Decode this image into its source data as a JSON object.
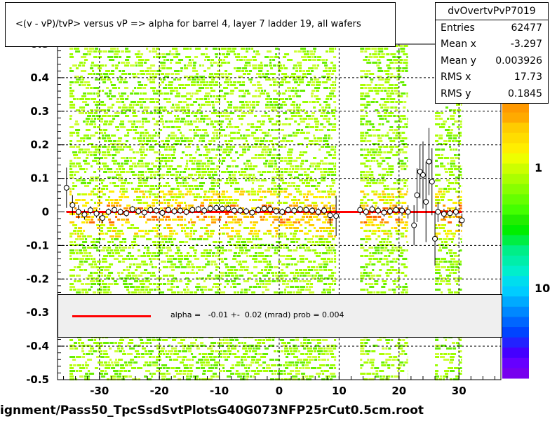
{
  "title": "<(v - vP)/tvP> versus   vP => alpha for barrel 4, layer 7 ladder 19, all wafers",
  "stats": {
    "name": "dvOvertvPvP7019",
    "rows": [
      {
        "label": "Entries",
        "value": "62477"
      },
      {
        "label": "Mean x",
        "value": "-3.297"
      },
      {
        "label": "Mean y",
        "value": "0.003926"
      },
      {
        "label": "RMS x",
        "value": "17.73"
      },
      {
        "label": "RMS y",
        "value": "0.1845"
      }
    ]
  },
  "legend": {
    "text": "alpha =   -0.01 +-  0.02 (mrad) prob = 0.004",
    "color": "#ff0000"
  },
  "footer": "ignment/Pass50_TpcSsdSvtPlotsG40G073NFP25rCut0.5cm.root",
  "colorbar_labels": [
    "1",
    "10"
  ],
  "chart_data": {
    "type": "scatter",
    "xlim": [
      -37,
      37
    ],
    "ylim": [
      -0.5,
      0.5
    ],
    "x_ticks": [
      -30,
      -20,
      -10,
      0,
      10,
      20,
      30
    ],
    "y_ticks": [
      -0.5,
      -0.4,
      -0.3,
      -0.2,
      -0.1,
      0,
      0.1,
      0.2,
      0.3,
      0.4,
      0.5
    ],
    "y_tick_labels": [
      "-0.5",
      "-0.4",
      "-0.3",
      "-0.2",
      "-0.1",
      "0",
      "0.1",
      "0.2",
      "0.3",
      "0.4",
      "0.5"
    ],
    "grid": true,
    "filled_x_ranges": [
      [
        -35,
        9.5
      ],
      [
        13.5,
        21.5
      ],
      [
        26,
        30.5
      ]
    ],
    "fit": {
      "x": [
        -35.5,
        30.5
      ],
      "y": [
        0.0,
        0.0
      ],
      "color": "#ff0000"
    },
    "profile_points": [
      {
        "x": -35.5,
        "y": 0.072,
        "err": 0.06
      },
      {
        "x": -34.5,
        "y": 0.02,
        "err": 0.03
      },
      {
        "x": -33.5,
        "y": 0.0,
        "err": 0.02
      },
      {
        "x": -32.5,
        "y": -0.008,
        "err": 0.015
      },
      {
        "x": -31.5,
        "y": 0.005,
        "err": 0.012
      },
      {
        "x": -30.5,
        "y": -0.005,
        "err": 0.012
      },
      {
        "x": -29.5,
        "y": -0.018,
        "err": 0.015
      },
      {
        "x": -28.5,
        "y": 0.0,
        "err": 0.01
      },
      {
        "x": -27.5,
        "y": 0.006,
        "err": 0.01
      },
      {
        "x": -26.5,
        "y": 0.0,
        "err": 0.01
      },
      {
        "x": -25.5,
        "y": -0.004,
        "err": 0.01
      },
      {
        "x": -24.5,
        "y": 0.008,
        "err": 0.01
      },
      {
        "x": -23.5,
        "y": 0.002,
        "err": 0.01
      },
      {
        "x": -22.5,
        "y": -0.002,
        "err": 0.01
      },
      {
        "x": -21.5,
        "y": 0.006,
        "err": 0.01
      },
      {
        "x": -20.5,
        "y": 0.004,
        "err": 0.01
      },
      {
        "x": -19.5,
        "y": -0.003,
        "err": 0.01
      },
      {
        "x": -18.5,
        "y": 0.006,
        "err": 0.01
      },
      {
        "x": -17.5,
        "y": 0.002,
        "err": 0.01
      },
      {
        "x": -16.5,
        "y": 0.004,
        "err": 0.01
      },
      {
        "x": -15.5,
        "y": 0.0,
        "err": 0.01
      },
      {
        "x": -14.5,
        "y": 0.006,
        "err": 0.01
      },
      {
        "x": -13.5,
        "y": 0.008,
        "err": 0.01
      },
      {
        "x": -12.5,
        "y": 0.004,
        "err": 0.01
      },
      {
        "x": -11.5,
        "y": 0.01,
        "err": 0.01
      },
      {
        "x": -10.5,
        "y": 0.012,
        "err": 0.01
      },
      {
        "x": -9.5,
        "y": 0.01,
        "err": 0.01
      },
      {
        "x": -8.5,
        "y": 0.01,
        "err": 0.01
      },
      {
        "x": -7.5,
        "y": 0.004,
        "err": 0.01
      },
      {
        "x": -6.5,
        "y": 0.004,
        "err": 0.01
      },
      {
        "x": -5.5,
        "y": 0.002,
        "err": 0.01
      },
      {
        "x": -4.5,
        "y": -0.002,
        "err": 0.01
      },
      {
        "x": -3.5,
        "y": 0.006,
        "err": 0.01
      },
      {
        "x": -2.5,
        "y": 0.01,
        "err": 0.01
      },
      {
        "x": -1.5,
        "y": 0.008,
        "err": 0.01
      },
      {
        "x": -0.5,
        "y": 0.002,
        "err": 0.01
      },
      {
        "x": 0.5,
        "y": 0.0,
        "err": 0.01
      },
      {
        "x": 1.5,
        "y": 0.006,
        "err": 0.01
      },
      {
        "x": 2.5,
        "y": 0.004,
        "err": 0.01
      },
      {
        "x": 3.5,
        "y": 0.008,
        "err": 0.01
      },
      {
        "x": 4.5,
        "y": 0.006,
        "err": 0.01
      },
      {
        "x": 5.5,
        "y": 0.004,
        "err": 0.01
      },
      {
        "x": 6.5,
        "y": 0.0,
        "err": 0.012
      },
      {
        "x": 7.5,
        "y": 0.004,
        "err": 0.012
      },
      {
        "x": 8.5,
        "y": -0.01,
        "err": 0.03
      },
      {
        "x": 9.5,
        "y": -0.012,
        "err": 0.06
      },
      {
        "x": 13.5,
        "y": 0.006,
        "err": 0.015
      },
      {
        "x": 14.5,
        "y": 0.0,
        "err": 0.012
      },
      {
        "x": 15.5,
        "y": 0.008,
        "err": 0.012
      },
      {
        "x": 16.5,
        "y": 0.004,
        "err": 0.012
      },
      {
        "x": 17.5,
        "y": -0.002,
        "err": 0.012
      },
      {
        "x": 18.5,
        "y": 0.002,
        "err": 0.012
      },
      {
        "x": 19.5,
        "y": 0.006,
        "err": 0.012
      },
      {
        "x": 20.5,
        "y": 0.004,
        "err": 0.015
      },
      {
        "x": 21.5,
        "y": 0.0,
        "err": 0.02
      },
      {
        "x": 22.5,
        "y": -0.04,
        "err": 0.06
      },
      {
        "x": 23.0,
        "y": 0.05,
        "err": 0.08
      },
      {
        "x": 23.5,
        "y": 0.12,
        "err": 0.08
      },
      {
        "x": 24.0,
        "y": 0.11,
        "err": 0.1
      },
      {
        "x": 24.5,
        "y": 0.03,
        "err": 0.12
      },
      {
        "x": 25.0,
        "y": 0.15,
        "err": 0.1
      },
      {
        "x": 25.5,
        "y": 0.09,
        "err": 0.1
      },
      {
        "x": 26.0,
        "y": -0.08,
        "err": 0.08
      },
      {
        "x": 26.5,
        "y": 0.0,
        "err": 0.03
      },
      {
        "x": 27.5,
        "y": -0.006,
        "err": 0.015
      },
      {
        "x": 28.5,
        "y": -0.004,
        "err": 0.015
      },
      {
        "x": 29.5,
        "y": 0.0,
        "err": 0.015
      },
      {
        "x": 30.5,
        "y": -0.025,
        "err": 0.02
      }
    ],
    "colorbar": {
      "orientation": "vertical",
      "min": 0,
      "max": 10,
      "tick_labels": [
        "1",
        "10"
      ]
    }
  }
}
